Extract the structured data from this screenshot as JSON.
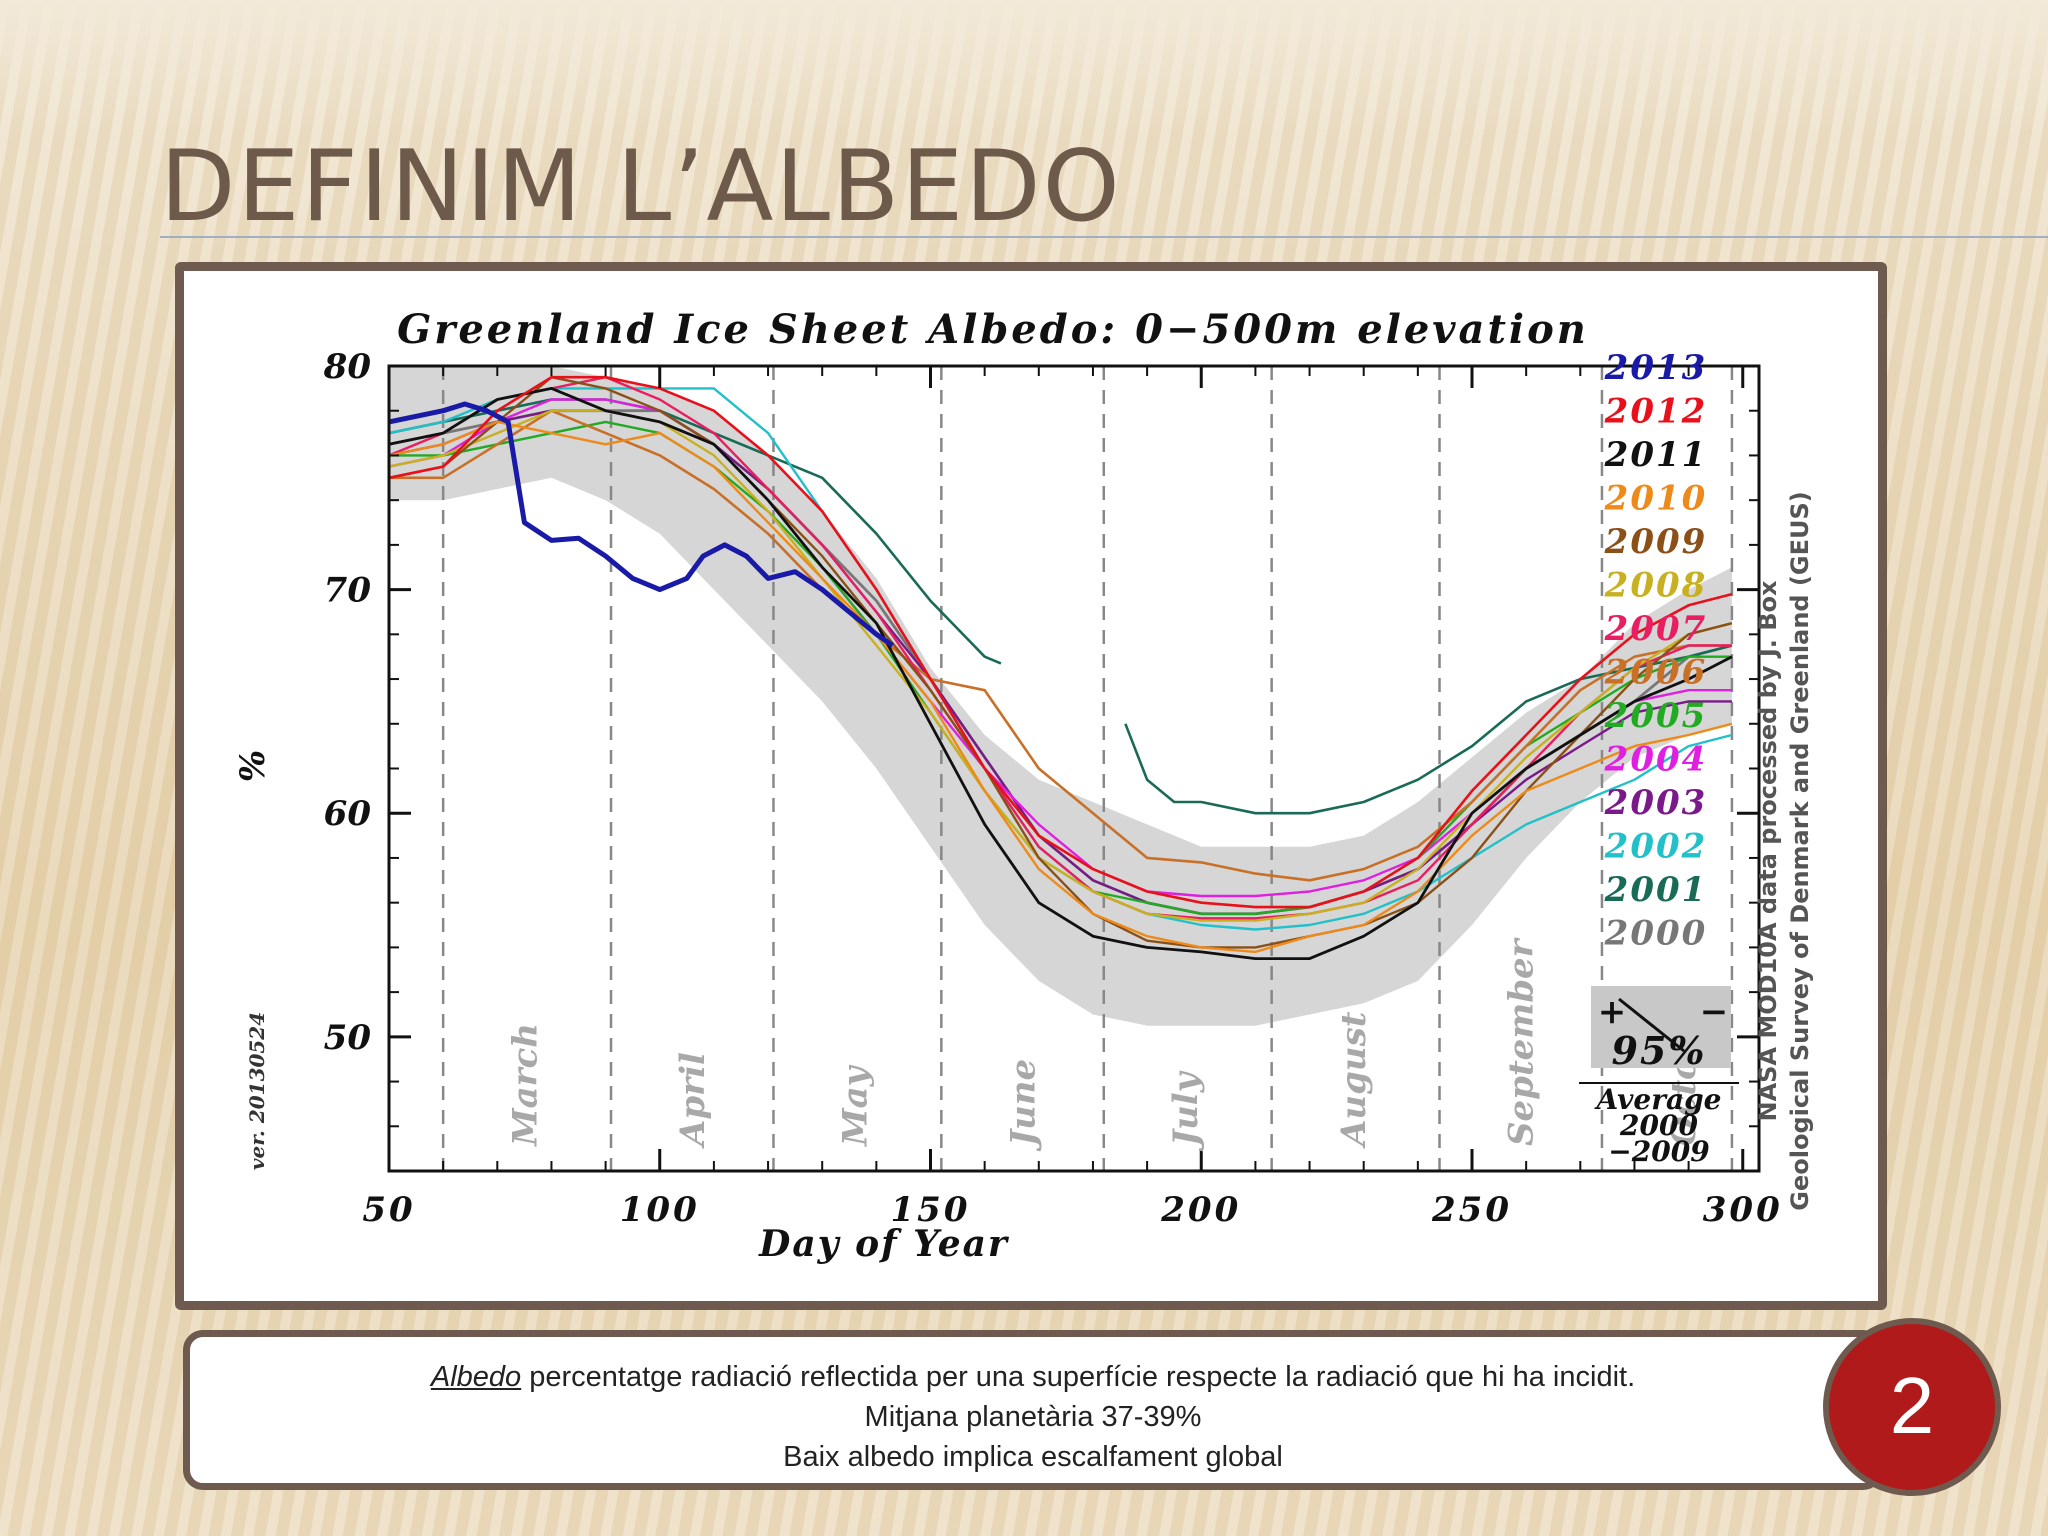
{
  "slide": {
    "title": "DEFINIM L’ALBEDO",
    "page_number": "2",
    "note": {
      "term": "Albedo",
      "line1_rest": " percentatge radiació reflectida per una superfície respecte la radiació que hi ha incidit.",
      "line2": "Mitjana planetària 37-39%",
      "line3": "Baix albedo implica escalfament global"
    },
    "colors": {
      "frame": "#6e5a4e",
      "circle": "#b11a1a",
      "title": "#6e5a4a"
    }
  },
  "chart_data": {
    "type": "line",
    "title": "Greenland Ice Sheet Albedo: 0−500m elevation",
    "xlabel": "Day of Year",
    "ylabel": "%",
    "xlim": [
      50,
      303
    ],
    "ylim": [
      44,
      80
    ],
    "xticks": [
      50,
      100,
      150,
      200,
      250,
      300
    ],
    "yticks": [
      50,
      60,
      70,
      80
    ],
    "months": [
      {
        "label": "March",
        "x": 75
      },
      {
        "label": "April",
        "x": 106
      },
      {
        "label": "May",
        "x": 136
      },
      {
        "label": "June",
        "x": 167
      },
      {
        "label": "July",
        "x": 197
      },
      {
        "label": "August",
        "x": 228
      },
      {
        "label": "September",
        "x": 259
      },
      {
        "label": "October",
        "x": 289
      }
    ],
    "month_boundaries": [
      60,
      91,
      121,
      152,
      182,
      213,
      244,
      274,
      298
    ],
    "version_note": "ver. 20130524",
    "credit_line1": "NASA MOD10A data processed by J. Box",
    "credit_line2": "Geological Survey of Denmark and Greenland (GEUS)",
    "band_legend": {
      "plus": "+",
      "minus": "−",
      "pct": "95%",
      "avg1": "Average",
      "avg2": "2000",
      "avg3": "−2009"
    },
    "band": {
      "x": [
        50,
        60,
        70,
        80,
        90,
        100,
        110,
        120,
        130,
        140,
        150,
        160,
        170,
        180,
        190,
        200,
        210,
        220,
        230,
        240,
        250,
        260,
        270,
        280,
        290,
        298
      ],
      "upper": [
        80,
        80,
        80,
        80,
        79.5,
        79,
        78,
        76,
        73.5,
        70.5,
        66.5,
        63.5,
        61.5,
        60.5,
        59.5,
        58.5,
        58.5,
        58.5,
        59,
        60.5,
        62.5,
        64.5,
        66,
        68.5,
        70,
        71
      ],
      "lower": [
        74,
        74,
        74.5,
        75,
        74,
        72.5,
        70,
        67.5,
        65,
        62,
        58.5,
        55,
        52.5,
        51,
        50.5,
        50.5,
        50.5,
        51,
        51.5,
        52.5,
        55,
        58,
        60.5,
        62.5,
        63.5,
        64
      ]
    },
    "series": [
      {
        "name": "2013",
        "color": "#1a1aa8",
        "width": 5,
        "x": [
          50,
          60,
          64,
          68,
          72,
          75,
          80,
          85,
          90,
          95,
          100,
          105,
          108,
          112,
          116,
          120,
          125,
          130,
          135,
          140,
          143
        ],
        "y": [
          77.5,
          78,
          78.3,
          78,
          77.5,
          73,
          72.2,
          72.3,
          71.5,
          70.5,
          70,
          70.5,
          71.5,
          72,
          71.5,
          70.5,
          70.8,
          70,
          69,
          68,
          67.5
        ]
      },
      {
        "name": "2012",
        "color": "#e8101a",
        "width": 2.6,
        "x": [
          50,
          60,
          70,
          80,
          90,
          100,
          110,
          120,
          130,
          140,
          150,
          160,
          170,
          180,
          190,
          200,
          210,
          220,
          230,
          240,
          250,
          260,
          270,
          280,
          290,
          298
        ],
        "y": [
          75,
          75.5,
          78,
          79.5,
          79.5,
          79,
          78,
          76,
          73.5,
          70,
          66,
          62,
          59,
          57.5,
          56.5,
          56,
          55.8,
          55.8,
          56.5,
          58,
          61,
          63.5,
          66,
          68,
          69.3,
          69.8
        ]
      },
      {
        "name": "2011",
        "color": "#111111",
        "width": 2.8,
        "x": [
          50,
          60,
          70,
          80,
          90,
          100,
          110,
          120,
          130,
          140,
          150,
          160,
          170,
          180,
          190,
          200,
          210,
          220,
          230,
          240,
          250,
          260,
          270,
          280,
          290,
          298
        ],
        "y": [
          76.5,
          77,
          78.5,
          79,
          78,
          77.5,
          76.5,
          74,
          71,
          68.5,
          64,
          59.5,
          56,
          54.5,
          54,
          53.8,
          53.5,
          53.5,
          54.5,
          56,
          60,
          62,
          63.5,
          65,
          66,
          67
        ]
      },
      {
        "name": "2010",
        "color": "#ee8a1a",
        "width": 2.4,
        "x": [
          50,
          60,
          70,
          80,
          90,
          100,
          110,
          120,
          130,
          140,
          150,
          160,
          170,
          180,
          190,
          200,
          210,
          220,
          230,
          240,
          250,
          260,
          270,
          280,
          290,
          298
        ],
        "y": [
          76,
          76.5,
          77.5,
          77,
          76.5,
          77,
          75.5,
          73,
          70.5,
          68,
          65,
          61,
          57.5,
          55.5,
          54.5,
          54,
          53.8,
          54.5,
          55,
          56.5,
          59,
          61,
          62,
          63,
          63.5,
          64
        ]
      },
      {
        "name": "2009",
        "color": "#8b5018",
        "width": 2.4,
        "x": [
          50,
          60,
          70,
          80,
          90,
          100,
          110,
          120,
          130,
          140,
          150,
          160,
          170,
          180,
          190,
          200,
          210,
          220,
          230,
          240,
          250,
          260,
          270,
          280,
          290,
          298
        ],
        "y": [
          75,
          75.5,
          77.5,
          79.5,
          79,
          78,
          76.5,
          74,
          71.5,
          68.5,
          65.5,
          62,
          58,
          55.5,
          54.3,
          54,
          54,
          54.5,
          55,
          56,
          58,
          61,
          63.5,
          66,
          68,
          68.5
        ]
      },
      {
        "name": "2008",
        "color": "#c8b020",
        "width": 2.4,
        "x": [
          50,
          60,
          70,
          80,
          90,
          100,
          110,
          120,
          130,
          140,
          150,
          160,
          170,
          180,
          190,
          200,
          210,
          220,
          230,
          240,
          250,
          260,
          270,
          280,
          290,
          298
        ],
        "y": [
          75.5,
          76,
          77,
          78,
          78,
          77.5,
          76,
          73.5,
          70.5,
          67.5,
          64.5,
          61,
          58,
          56.5,
          55.5,
          55.2,
          55.2,
          55.5,
          56,
          57.5,
          60,
          62.5,
          64.5,
          66.5,
          68,
          68.5
        ]
      },
      {
        "name": "2007",
        "color": "#e81e60",
        "width": 2.4,
        "x": [
          50,
          60,
          70,
          80,
          90,
          100,
          110,
          120,
          130,
          140,
          150,
          160,
          170,
          180,
          190,
          200,
          210,
          220,
          230,
          240,
          250,
          260,
          270,
          280,
          290,
          298
        ],
        "y": [
          76,
          77,
          78.5,
          79,
          79.5,
          78.5,
          77,
          74.5,
          72,
          69,
          65.5,
          62,
          58.5,
          56.5,
          55.5,
          55.3,
          55.3,
          55.5,
          56,
          57,
          59.5,
          62,
          64.5,
          66.5,
          67.5,
          67.5
        ]
      },
      {
        "name": "2006",
        "color": "#c87028",
        "width": 2.6,
        "x": [
          50,
          60,
          70,
          80,
          90,
          100,
          110,
          120,
          130,
          140,
          150,
          160,
          170,
          180,
          190,
          200,
          210,
          220,
          230,
          240,
          250,
          260,
          270,
          280,
          290,
          298
        ],
        "y": [
          75,
          75,
          76.5,
          78,
          77,
          76,
          74.5,
          72.5,
          70,
          68,
          66,
          65.5,
          62,
          60,
          58,
          57.8,
          57.3,
          57,
          57.5,
          58.5,
          60.5,
          63,
          65.5,
          67,
          67.5,
          67.5
        ]
      },
      {
        "name": "2005",
        "color": "#22aa22",
        "width": 2.4,
        "x": [
          50,
          60,
          70,
          80,
          90,
          100,
          110,
          120,
          130,
          140,
          150,
          160,
          170,
          180,
          190,
          200,
          210,
          220,
          230,
          240,
          250,
          260,
          270,
          280,
          290,
          298
        ],
        "y": [
          76,
          76,
          76.5,
          77,
          77.5,
          77,
          75.5,
          73.5,
          71,
          68,
          64.5,
          61,
          58,
          56.5,
          56,
          55.5,
          55.5,
          55.8,
          56.5,
          58,
          60.5,
          63,
          64.5,
          66,
          67,
          67
        ]
      },
      {
        "name": "2004",
        "color": "#e020e0",
        "width": 2.4,
        "x": [
          50,
          60,
          70,
          80,
          90,
          100,
          110,
          120,
          130,
          140,
          150,
          160,
          170,
          180,
          190,
          200,
          210,
          220,
          230,
          240,
          250,
          260,
          270,
          280,
          290,
          298
        ],
        "y": [
          75.5,
          76,
          77.5,
          78.5,
          78.5,
          78,
          76.5,
          74,
          71,
          68,
          65,
          62,
          59.5,
          57.5,
          56.5,
          56.3,
          56.3,
          56.5,
          57,
          58,
          60,
          62,
          63.5,
          65,
          65.5,
          65.5
        ]
      },
      {
        "name": "2003",
        "color": "#7a1a8a",
        "width": 2.4,
        "x": [
          50,
          60,
          70,
          80,
          90,
          100,
          110,
          120,
          130,
          140,
          150,
          160,
          170,
          180,
          190,
          200,
          210,
          220,
          230,
          240,
          250,
          260,
          270,
          280,
          290,
          298
        ],
        "y": [
          76,
          76.5,
          77.5,
          78,
          78,
          77.5,
          76.5,
          74.5,
          72,
          69,
          66,
          62.5,
          59,
          57,
          56,
          55.5,
          55.5,
          55.8,
          56.5,
          57.5,
          59.5,
          61.5,
          63,
          64.5,
          65,
          65
        ]
      },
      {
        "name": "2002",
        "color": "#22c0c8",
        "width": 2.4,
        "x": [
          50,
          60,
          70,
          80,
          90,
          100,
          110,
          120,
          130,
          140,
          150,
          160,
          170,
          180,
          190,
          200,
          210,
          220,
          230,
          240,
          250,
          260,
          270,
          280,
          290,
          298
        ],
        "y": [
          77,
          77.5,
          78.5,
          79,
          79,
          79,
          79,
          77,
          73.5,
          70,
          66,
          62,
          58.5,
          56.5,
          55.5,
          55,
          54.8,
          55,
          55.5,
          56.5,
          58,
          59.5,
          60.5,
          61.5,
          63,
          63.5
        ]
      },
      {
        "name": "2001",
        "color": "#1a6a58",
        "width": 2.6,
        "x": [
          50,
          60,
          70,
          80,
          90,
          100,
          110,
          120,
          130,
          140,
          150,
          160,
          163
        ],
        "y": [
          77,
          77.5,
          78,
          78.5,
          78.5,
          78,
          77,
          76,
          75,
          72.5,
          69.5,
          67,
          66.7
        ],
        "x2": [
          186,
          190,
          195,
          200,
          210,
          220,
          230,
          240,
          250,
          260,
          270,
          280,
          290,
          298
        ],
        "y2": [
          64,
          61.5,
          60.5,
          60.5,
          60,
          60,
          60.5,
          61.5,
          63,
          65,
          66,
          66.5,
          67,
          67.5
        ]
      },
      {
        "name": "2000",
        "color": "#777777",
        "width": 2.8,
        "x": [
          50,
          60,
          70,
          80,
          90,
          100,
          110,
          120,
          130,
          140,
          150,
          160,
          170,
          180,
          190,
          200,
          210,
          220,
          230,
          240,
          250,
          260,
          270,
          280,
          290,
          298
        ],
        "y": [
          76.5,
          77,
          77.5,
          78,
          78,
          78,
          76.5,
          74.5,
          72,
          69.5,
          66,
          62.5,
          59,
          57,
          56,
          55.5,
          55.5,
          55.8,
          56.5,
          57.5,
          59.5,
          62,
          63.5,
          65,
          67,
          67.5
        ]
      }
    ]
  }
}
